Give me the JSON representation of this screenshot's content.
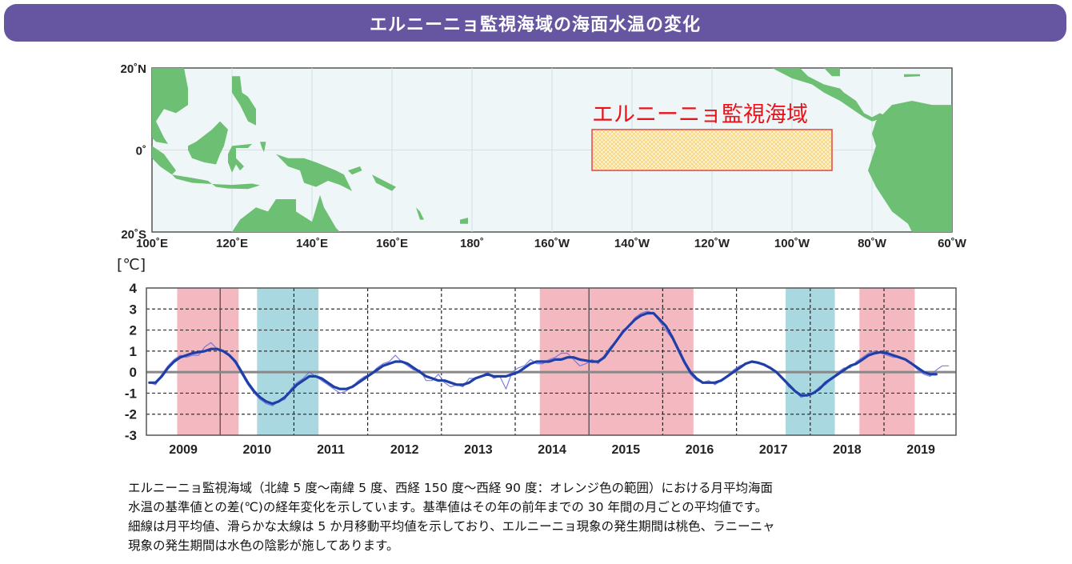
{
  "title": "エルニーニョ監視海域の海面水温の変化",
  "map": {
    "region_label": "エルニーニョ監視海域",
    "region": {
      "lon_west": "150°W",
      "lon_east": "90°W",
      "lat_north": "5°N",
      "lat_south": "5°S"
    },
    "lat_labels": [
      "20˚N",
      "0˚",
      "20˚S"
    ],
    "lon_labels": [
      "100˚E",
      "120˚E",
      "140˚E",
      "160˚E",
      "180˚",
      "160˚W",
      "140˚W",
      "120˚W",
      "100˚W",
      "80˚W",
      "60˚W"
    ],
    "colors": {
      "ocean": "#eef6f8",
      "land": "#6cbf73",
      "region_border": "#ee4444",
      "region_fill": "#fbe9a8",
      "label": "#e8141c"
    }
  },
  "chart_data": {
    "type": "line",
    "ylabel": "[℃]",
    "ylim": [
      -3,
      4
    ],
    "yticks": [
      "4",
      "3",
      "2",
      "1",
      "0",
      "-1",
      "-2",
      "-3"
    ],
    "xlim": [
      "2009-01",
      "2019-12"
    ],
    "xticks": [
      "2009",
      "2010",
      "2011",
      "2012",
      "2013",
      "2014",
      "2015",
      "2016",
      "2017",
      "2018",
      "2019"
    ],
    "grid": true,
    "start": "2009-01",
    "series": [
      {
        "kind": "monthly",
        "color": "#6a6ad8",
        "values": [
          -0.5,
          -0.6,
          -0.1,
          0.3,
          0.6,
          0.8,
          0.7,
          0.8,
          0.8,
          1.2,
          1.4,
          1.1,
          1.0,
          0.8,
          0.4,
          -0.1,
          -0.6,
          -1.0,
          -1.3,
          -1.5,
          -1.6,
          -1.4,
          -1.3,
          -0.8,
          -0.5,
          -0.3,
          0.0,
          -0.2,
          -0.4,
          -0.6,
          -0.8,
          -1.0,
          -0.9,
          -0.7,
          -0.4,
          -0.2,
          -0.1,
          0.2,
          0.4,
          0.5,
          0.8,
          0.5,
          0.3,
          0.1,
          0.1,
          -0.4,
          -0.4,
          -0.1,
          -0.5,
          -0.7,
          -0.6,
          -0.7,
          -0.3,
          -0.3,
          -0.2,
          0.0,
          -0.3,
          -0.2,
          -0.8,
          0.0,
          0.2,
          0.3,
          0.6,
          0.4,
          0.4,
          0.6,
          0.7,
          0.9,
          0.9,
          0.6,
          0.3,
          0.4,
          0.6,
          0.4,
          0.8,
          1.2,
          1.5,
          2.0,
          2.2,
          2.6,
          2.8,
          2.9,
          2.8,
          2.4,
          2.0,
          1.6,
          1.0,
          0.4,
          -0.1,
          -0.4,
          -0.5,
          -0.4,
          -0.6,
          -0.4,
          -0.2,
          0.1,
          0.3,
          0.4,
          0.5,
          0.4,
          0.4,
          0.2,
          0.0,
          -0.3,
          -0.7,
          -0.9,
          -1.2,
          -1.1,
          -1.0,
          -0.7,
          -0.6,
          -0.3,
          0.0,
          0.2,
          0.2,
          0.5,
          0.7,
          0.9,
          1.0,
          0.9,
          0.8,
          0.7,
          0.7,
          0.6,
          0.4,
          0.1,
          -0.1,
          -0.2,
          0.1,
          0.3,
          0.3
        ]
      },
      {
        "kind": "5-month running mean",
        "color": "#1f3fa8",
        "values": [
          -0.5,
          -0.5,
          -0.2,
          0.2,
          0.5,
          0.7,
          0.8,
          0.9,
          0.95,
          1.0,
          1.1,
          1.1,
          1.0,
          0.8,
          0.5,
          0.0,
          -0.5,
          -0.9,
          -1.2,
          -1.4,
          -1.5,
          -1.4,
          -1.2,
          -0.9,
          -0.6,
          -0.4,
          -0.2,
          -0.2,
          -0.3,
          -0.5,
          -0.7,
          -0.8,
          -0.8,
          -0.7,
          -0.5,
          -0.3,
          -0.1,
          0.1,
          0.3,
          0.4,
          0.5,
          0.5,
          0.4,
          0.2,
          0.0,
          -0.2,
          -0.3,
          -0.4,
          -0.4,
          -0.5,
          -0.6,
          -0.6,
          -0.5,
          -0.3,
          -0.2,
          -0.1,
          -0.2,
          -0.2,
          -0.2,
          -0.1,
          0.0,
          0.2,
          0.4,
          0.5,
          0.5,
          0.5,
          0.6,
          0.6,
          0.7,
          0.7,
          0.6,
          0.55,
          0.5,
          0.5,
          0.7,
          1.1,
          1.5,
          1.9,
          2.2,
          2.5,
          2.7,
          2.8,
          2.8,
          2.5,
          2.2,
          1.7,
          1.1,
          0.5,
          0.0,
          -0.3,
          -0.5,
          -0.5,
          -0.5,
          -0.4,
          -0.2,
          0.0,
          0.2,
          0.4,
          0.5,
          0.45,
          0.35,
          0.2,
          0.0,
          -0.3,
          -0.6,
          -0.9,
          -1.1,
          -1.1,
          -1.0,
          -0.8,
          -0.5,
          -0.3,
          -0.1,
          0.1,
          0.3,
          0.4,
          0.6,
          0.8,
          0.9,
          0.95,
          0.9,
          0.8,
          0.7,
          0.6,
          0.4,
          0.2,
          0.0,
          -0.1,
          -0.1
        ]
      }
    ],
    "shaded_periods": [
      {
        "phase": "El Niño",
        "start": "2009-06",
        "end": "2010-03",
        "color": "#f4b8c0"
      },
      {
        "phase": "La Niña",
        "start": "2010-07",
        "end": "2011-04",
        "color": "#a9d8e0"
      },
      {
        "phase": "El Niño",
        "start": "2014-05",
        "end": "2016-05",
        "color": "#f4b8c0"
      },
      {
        "phase": "La Niña",
        "start": "2017-09",
        "end": "2018-04",
        "color": "#a9d8e0"
      },
      {
        "phase": "El Niño",
        "start": "2018-09",
        "end": "2019-05",
        "color": "#f4b8c0"
      }
    ]
  },
  "caption_lines": [
    "エルニーニョ監視海域（北緯 5 度～南緯 5 度、西経 150 度～西経 90 度：オレンジ色の範囲）における月平均海面",
    "水温の基準値との差(℃)の経年変化を示しています。基準値はその年の前年までの 30 年間の月ごとの平均値です。",
    "細線は月平均値、滑らかな太線は 5 か月移動平均値を示しており、エルニーニョ現象の発生期間は桃色、ラニーニャ",
    "現象の発生期間は水色の陰影が施してあります。"
  ]
}
